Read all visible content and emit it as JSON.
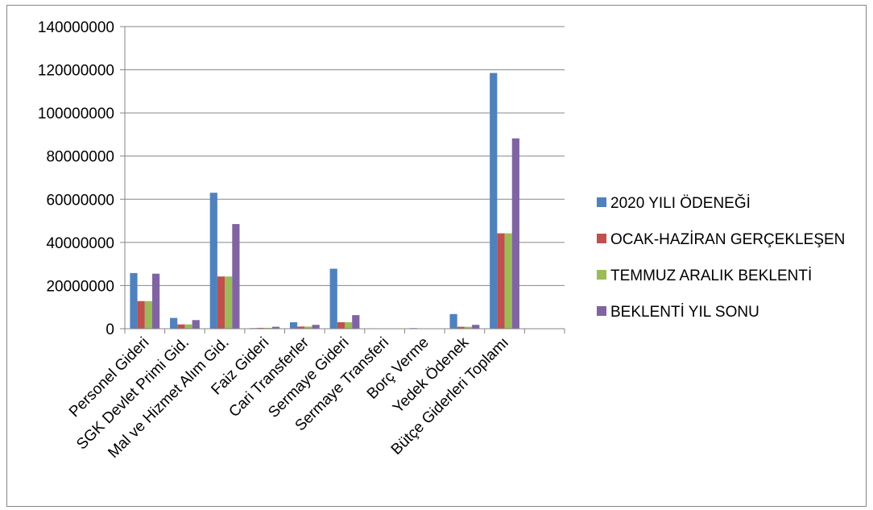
{
  "chart_data": {
    "type": "bar",
    "title": "",
    "xlabel": "",
    "ylabel": "",
    "ylim": [
      0,
      140000000
    ],
    "yticks": [
      0,
      20000000,
      40000000,
      60000000,
      80000000,
      100000000,
      120000000,
      140000000
    ],
    "grid": true,
    "legend_position": "right",
    "categories": [
      "Personel Gideri",
      "SGK Devlet Primi Gid.",
      "Mal ve Hizmet Alım Gid.",
      "Faiz Gideri",
      "Cari Transferler",
      "Sermaye Gideri",
      "Sermaye Transferi",
      "Borç Verme",
      "Yedek Ödenek",
      "Bütçe Giderleri Toplamı",
      ""
    ],
    "series": [
      {
        "name": "2020 YILI ÖDENEĞİ",
        "color": "#4f81bd",
        "values": [
          25800000,
          5000000,
          63000000,
          300000,
          3000000,
          27800000,
          200000,
          300000,
          6800000,
          118500000,
          0
        ]
      },
      {
        "name": "OCAK-HAZİRAN GERÇEKLEŞEN",
        "color": "#c0504d",
        "values": [
          12800000,
          2000000,
          24200000,
          400000,
          1000000,
          3000000,
          0,
          0,
          900000,
          44200000,
          0
        ]
      },
      {
        "name": "TEMMUZ ARALIK BEKLENTİ",
        "color": "#9bbb59",
        "values": [
          12800000,
          2000000,
          24200000,
          400000,
          1000000,
          3000000,
          0,
          0,
          900000,
          44200000,
          0
        ]
      },
      {
        "name": "BEKLENTİ YIL SONU",
        "color": "#8064a2",
        "values": [
          25500000,
          4000000,
          48500000,
          900000,
          1800000,
          6300000,
          0,
          0,
          1800000,
          88200000,
          0
        ]
      }
    ]
  }
}
